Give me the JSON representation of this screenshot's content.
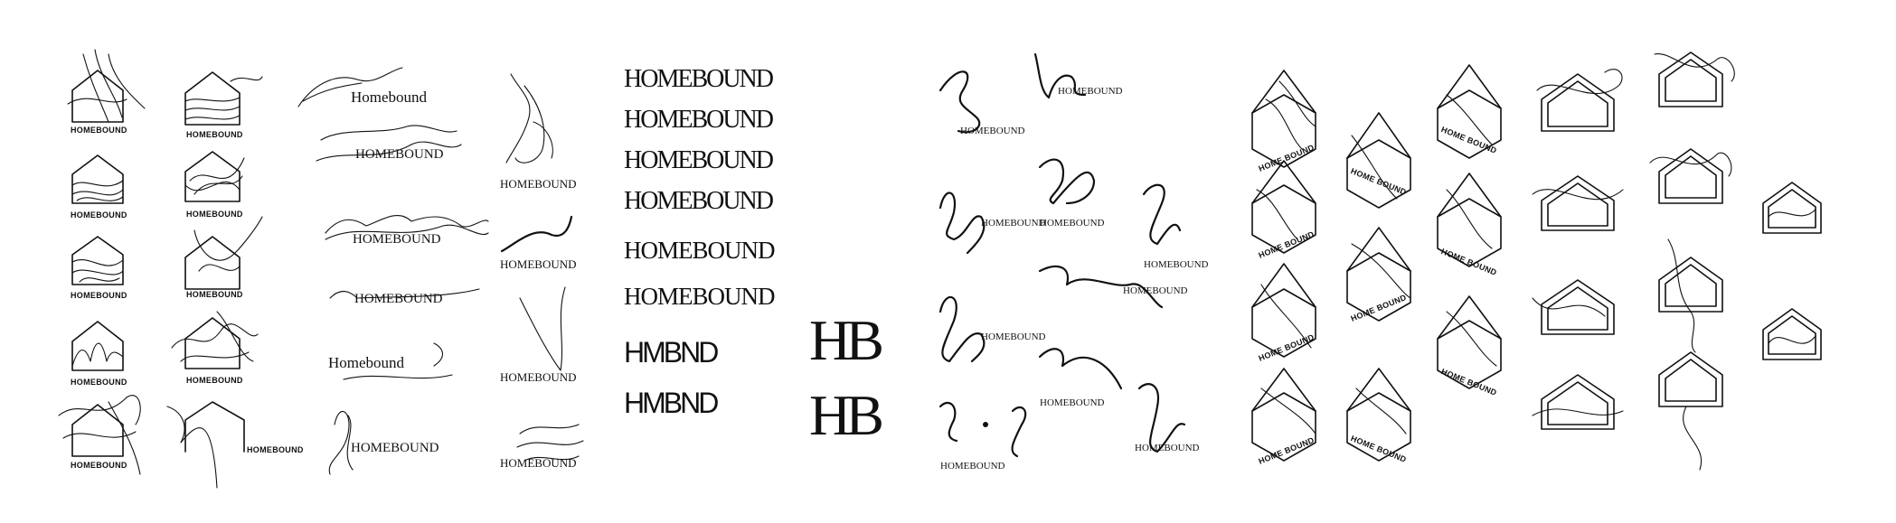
{
  "brand": {
    "name_caps": "HOMEBOUND",
    "name_title": "Homebound",
    "name_split": "HOME BOUND",
    "abbrev": "HMBND",
    "monogram": "HB"
  },
  "icons": [
    "house-outline-icon",
    "wavy-line-icon",
    "script-monogram-icon",
    "isometric-house-icon"
  ]
}
